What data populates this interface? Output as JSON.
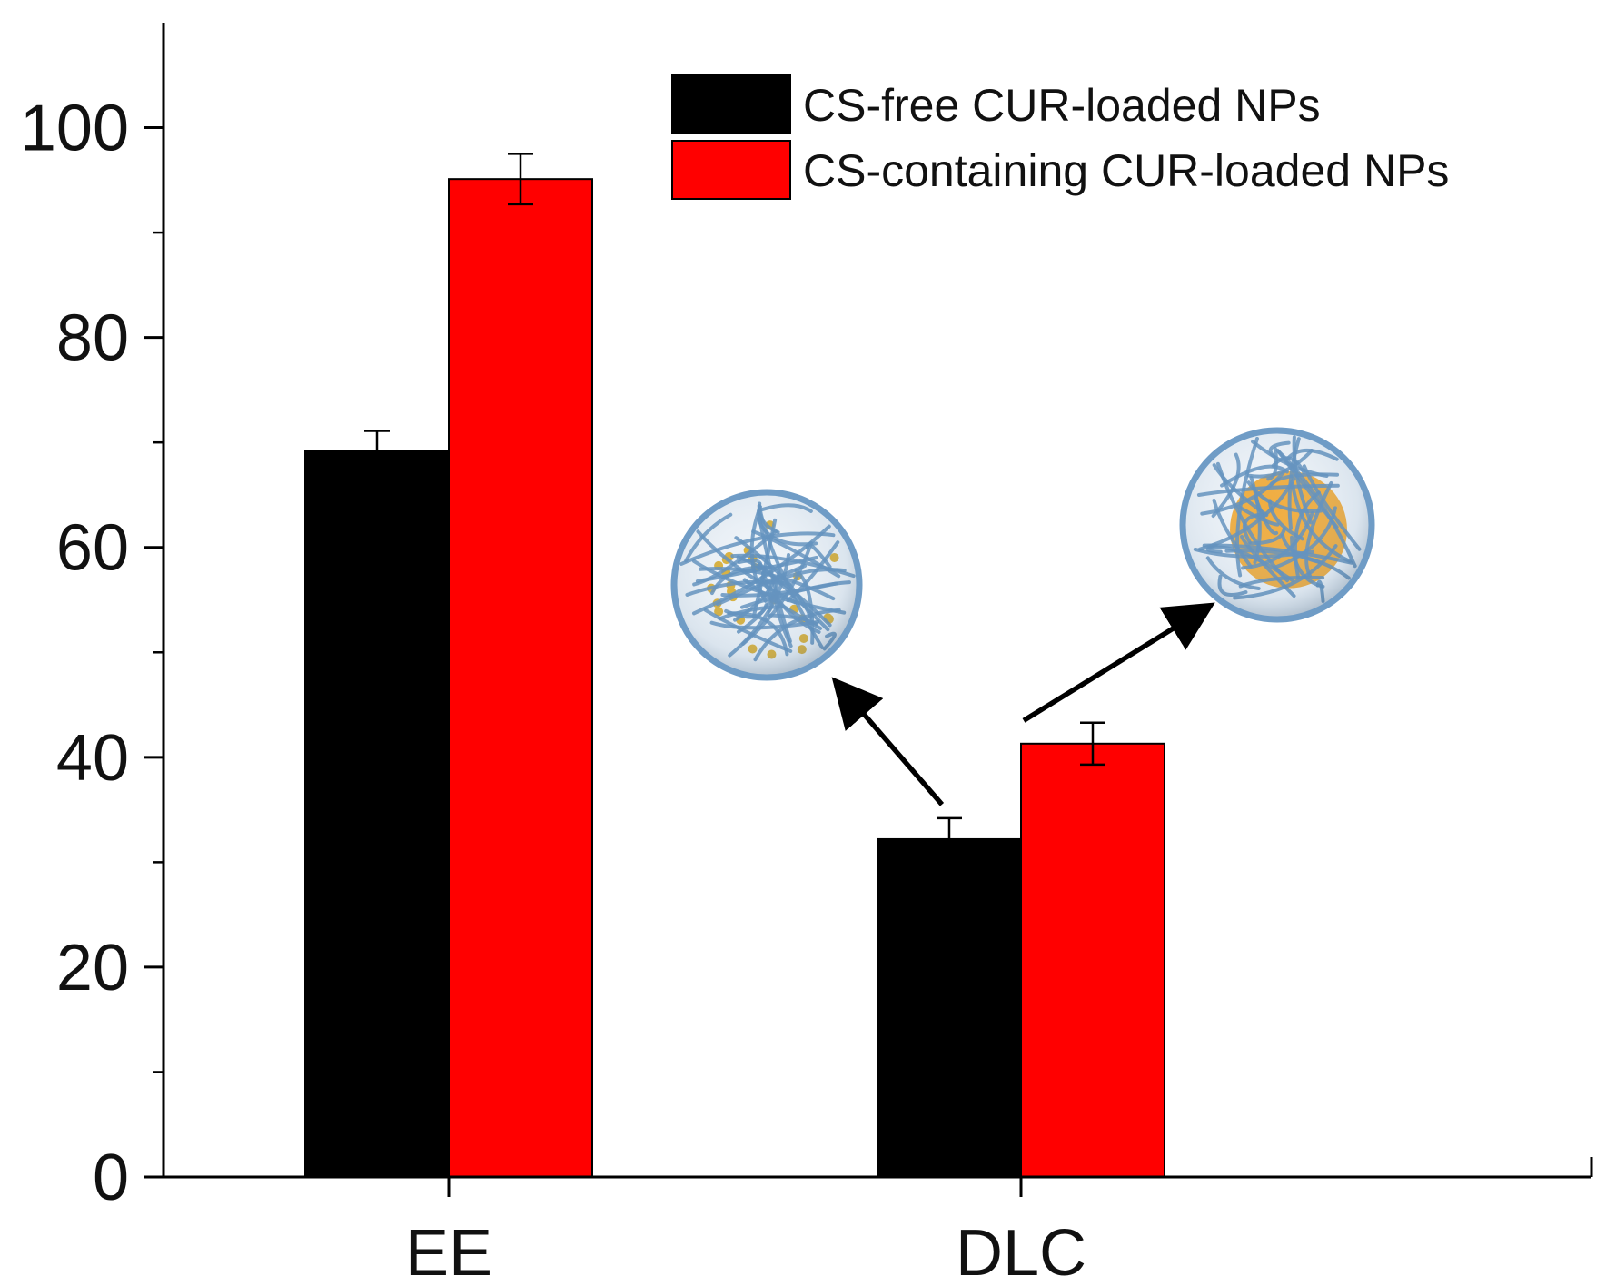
{
  "chart_data": {
    "type": "bar",
    "title": "",
    "xlabel": "",
    "ylabel": "",
    "ylim": [
      0,
      110
    ],
    "yticks": [
      0,
      20,
      40,
      60,
      80,
      100
    ],
    "yticks_labels": [
      "0",
      "20",
      "40",
      "60",
      "80",
      "100"
    ],
    "categories": [
      "EE",
      "DLC"
    ],
    "series": [
      {
        "name": "CS-free CUR-loaded NPs",
        "color": "#000000",
        "values": [
          69.2,
          32.2
        ],
        "errors": [
          1.9,
          2.0
        ]
      },
      {
        "name": "CS-containing CUR-loaded NPs",
        "color": "#ff0000",
        "values": [
          95.1,
          41.3
        ],
        "errors": [
          2.4,
          2.0
        ]
      }
    ],
    "legend_position": "top-right",
    "grid": false,
    "annotations": [
      {
        "type": "nanoparticle-illustration",
        "points_from": "DLC, CS-free CUR-loaded NPs",
        "core_color": "#d9b03a",
        "shell_color": "#7fa7c9"
      },
      {
        "type": "nanoparticle-illustration",
        "points_from": "DLC, CS-containing CUR-loaded NPs",
        "core_color": "#f0a020",
        "shell_color": "#7fa7c9"
      }
    ]
  }
}
